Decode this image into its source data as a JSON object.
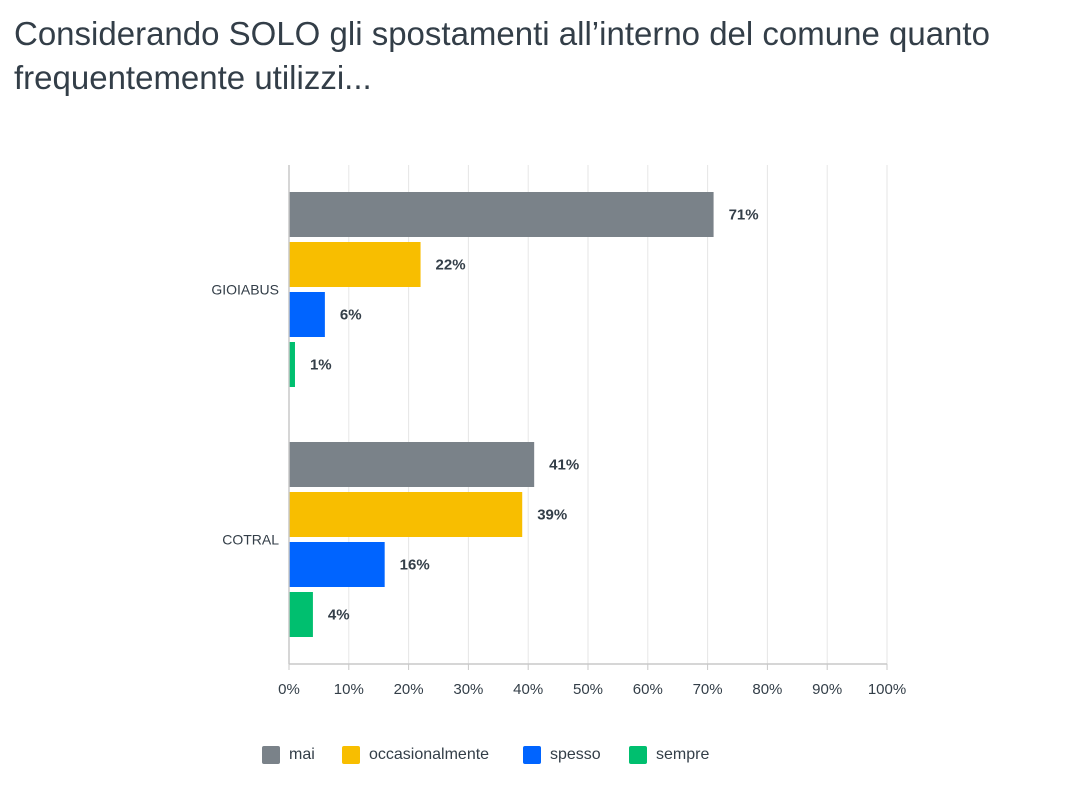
{
  "title": "Considerando SOLO gli spostamenti all’interno del comune quanto frequentemente utilizzi...",
  "chart_data": {
    "type": "bar",
    "orientation": "horizontal",
    "categories": [
      "GIOIABUS",
      "COTRAL"
    ],
    "series": [
      {
        "name": "mai",
        "color": "#7a8289",
        "values": [
          71,
          41
        ],
        "labels": [
          "71%",
          "41%"
        ]
      },
      {
        "name": "occasionalmente",
        "color": "#f8be00",
        "values": [
          22,
          39
        ],
        "labels": [
          "22%",
          "39%"
        ]
      },
      {
        "name": "spesso",
        "color": "#0064ff",
        "values": [
          6,
          16
        ],
        "labels": [
          "6%",
          "16%"
        ]
      },
      {
        "name": "sempre",
        "color": "#00bf6f",
        "values": [
          1,
          4
        ],
        "labels": [
          "1%",
          "4%"
        ]
      }
    ],
    "xlim": [
      0,
      100
    ],
    "xticks": [
      "0%",
      "10%",
      "20%",
      "30%",
      "40%",
      "50%",
      "60%",
      "70%",
      "80%",
      "90%",
      "100%"
    ],
    "xlabel": "",
    "ylabel": "",
    "grid": true,
    "legend_position": "bottom"
  }
}
